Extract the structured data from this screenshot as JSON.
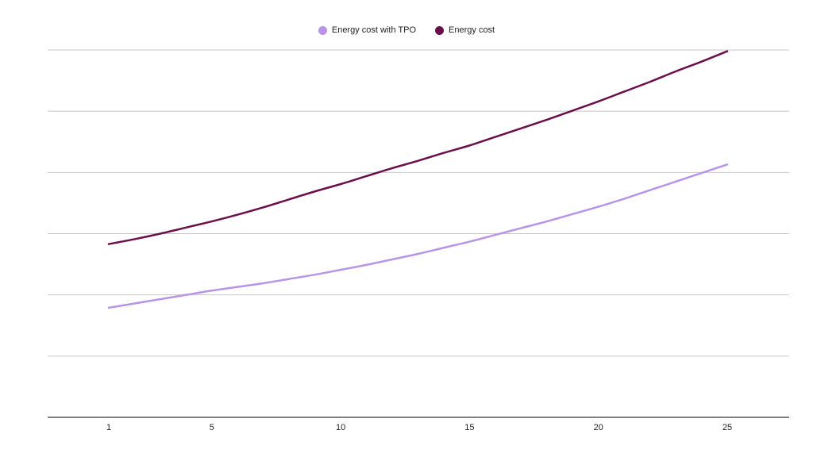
{
  "chart_data": {
    "type": "line",
    "title": "",
    "xlabel": "",
    "ylabel": "",
    "x": [
      1,
      2,
      3,
      4,
      5,
      6,
      7,
      8,
      9,
      10,
      11,
      12,
      13,
      14,
      15,
      16,
      17,
      18,
      19,
      20,
      21,
      22,
      23,
      24,
      25
    ],
    "x_ticks": [
      "1",
      "5",
      "10",
      "15",
      "20",
      "25"
    ],
    "ylim": [
      0,
      6
    ],
    "grid": true,
    "legend_position": "top-center",
    "series": [
      {
        "name": "Energy cost with TPO",
        "color": "#b794e8",
        "values": [
          1.79,
          1.86,
          1.93,
          2.0,
          2.07,
          2.13,
          2.19,
          2.26,
          2.33,
          2.41,
          2.49,
          2.58,
          2.67,
          2.77,
          2.87,
          2.98,
          3.09,
          3.2,
          3.32,
          3.44,
          3.57,
          3.71,
          3.85,
          3.99,
          4.13
        ]
      },
      {
        "name": "Energy cost",
        "color": "#6b0f4a",
        "values": [
          2.83,
          2.91,
          3.0,
          3.1,
          3.2,
          3.31,
          3.43,
          3.56,
          3.69,
          3.81,
          3.94,
          4.07,
          4.19,
          4.32,
          4.44,
          4.58,
          4.72,
          4.86,
          5.01,
          5.16,
          5.32,
          5.48,
          5.65,
          5.81,
          5.98
        ]
      }
    ]
  }
}
